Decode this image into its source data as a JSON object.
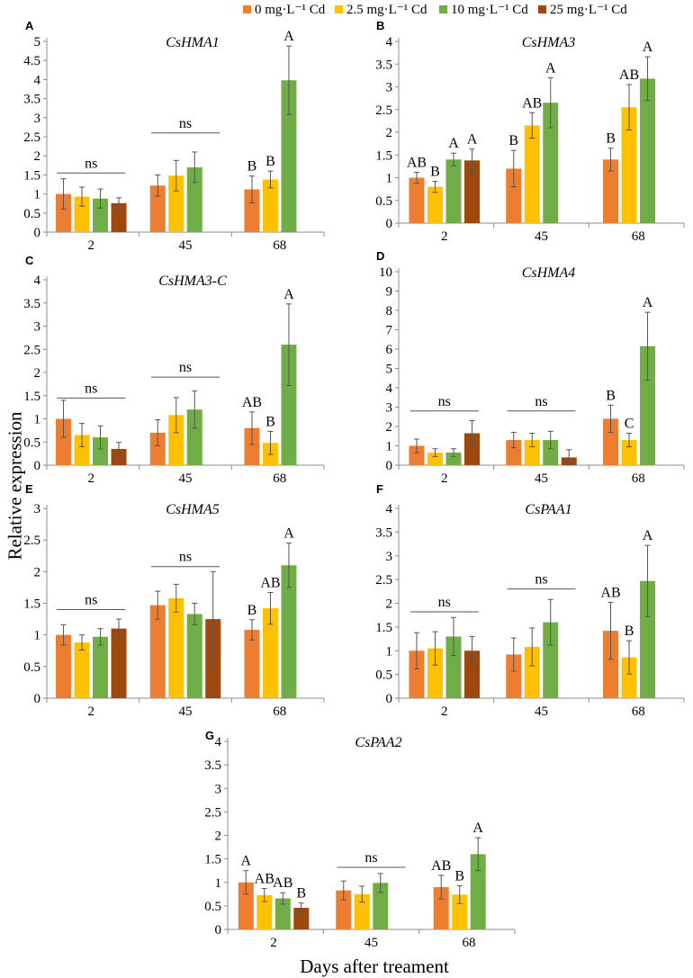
{
  "legend": {
    "items": [
      {
        "label": "0 mg·L⁻¹ Cd",
        "color": "#ED7D31"
      },
      {
        "label": "2.5 mg·L⁻¹ Cd",
        "color": "#FFC000"
      },
      {
        "label": "10 mg·L⁻¹ Cd",
        "color": "#70AD47"
      },
      {
        "label": "25 mg·L⁻¹ Cd",
        "color": "#9E480E"
      }
    ]
  },
  "axis_titles": {
    "y": "Relative expression",
    "x": "Days after treament"
  },
  "chart_data": [
    {
      "type": "bar",
      "panel": "A",
      "title": "CsHMA1",
      "categories": [
        "2",
        "45",
        "68"
      ],
      "ylim": [
        0,
        5
      ],
      "ystep": 0.5,
      "yticks": [
        "0",
        "0.5",
        "1",
        "1.5",
        "2",
        "2.5",
        "3",
        "3.5",
        "4",
        "4.5",
        "5"
      ],
      "series": [
        {
          "name": "0 mg·L⁻¹ Cd",
          "values": [
            1.0,
            1.22,
            1.12
          ],
          "errors": [
            0.4,
            0.28,
            0.35
          ],
          "labels": [
            "",
            "",
            "B"
          ]
        },
        {
          "name": "2.5 mg·L⁻¹ Cd",
          "values": [
            0.93,
            1.48,
            1.38
          ],
          "errors": [
            0.25,
            0.4,
            0.22
          ],
          "labels": [
            "",
            "",
            "B"
          ]
        },
        {
          "name": "10 mg·L⁻¹ Cd",
          "values": [
            0.88,
            1.7,
            3.98
          ],
          "errors": [
            0.25,
            0.4,
            0.9
          ],
          "labels": [
            "",
            "",
            "A"
          ]
        },
        {
          "name": "25 mg·L⁻¹ Cd",
          "values": [
            0.76,
            null,
            null
          ],
          "errors": [
            0.14,
            null,
            null
          ],
          "labels": [
            "",
            "",
            ""
          ]
        }
      ],
      "ns_groups": [
        {
          "category": "2",
          "label": "ns",
          "y": 1.55
        },
        {
          "category": "45",
          "label": "ns",
          "y": 2.6
        }
      ]
    },
    {
      "type": "bar",
      "panel": "B",
      "title": "CsHMA3",
      "categories": [
        "2",
        "45",
        "68"
      ],
      "ylim": [
        0,
        4
      ],
      "ystep": 0.5,
      "yticks": [
        "0",
        "0.5",
        "1",
        "1.5",
        "2",
        "2.5",
        "3",
        "3.5",
        "4"
      ],
      "series": [
        {
          "name": "0 mg·L⁻¹ Cd",
          "values": [
            1.0,
            1.2,
            1.4
          ],
          "errors": [
            0.12,
            0.4,
            0.25
          ],
          "labels": [
            "AB",
            "B",
            "B"
          ]
        },
        {
          "name": "2.5 mg·L⁻¹ Cd",
          "values": [
            0.8,
            2.15,
            2.55
          ],
          "errors": [
            0.12,
            0.28,
            0.5
          ],
          "labels": [
            "B",
            "AB",
            "AB"
          ]
        },
        {
          "name": "10 mg·L⁻¹ Cd",
          "values": [
            1.4,
            2.65,
            3.18
          ],
          "errors": [
            0.14,
            0.55,
            0.48
          ],
          "labels": [
            "A",
            "A",
            "A"
          ]
        },
        {
          "name": "25 mg·L⁻¹ Cd",
          "values": [
            1.38,
            null,
            null
          ],
          "errors": [
            0.25,
            null,
            null
          ],
          "labels": [
            "A",
            "",
            ""
          ]
        }
      ],
      "ns_groups": []
    },
    {
      "type": "bar",
      "panel": "C",
      "title": "CsHMA3-C",
      "categories": [
        "2",
        "45",
        "68"
      ],
      "ylim": [
        0,
        4
      ],
      "ystep": 0.5,
      "yticks": [
        "0",
        "0.5",
        "1",
        "1.5",
        "2",
        "2.5",
        "3",
        "3.5",
        "4"
      ],
      "series": [
        {
          "name": "0 mg·L⁻¹ Cd",
          "values": [
            1.0,
            0.7,
            0.8
          ],
          "errors": [
            0.4,
            0.28,
            0.35
          ],
          "labels": [
            "",
            "",
            "AB"
          ]
        },
        {
          "name": "2.5 mg·L⁻¹ Cd",
          "values": [
            0.65,
            1.08,
            0.48
          ],
          "errors": [
            0.25,
            0.38,
            0.25
          ],
          "labels": [
            "",
            "",
            "B"
          ]
        },
        {
          "name": "10 mg·L⁻¹ Cd",
          "values": [
            0.6,
            1.2,
            2.6
          ],
          "errors": [
            0.25,
            0.4,
            0.88
          ],
          "labels": [
            "",
            "",
            "A"
          ]
        },
        {
          "name": "25 mg·L⁻¹ Cd",
          "values": [
            0.35,
            null,
            null
          ],
          "errors": [
            0.14,
            null,
            null
          ],
          "labels": [
            "",
            "",
            ""
          ]
        }
      ],
      "ns_groups": [
        {
          "category": "2",
          "label": "ns",
          "y": 1.45
        },
        {
          "category": "45",
          "label": "ns",
          "y": 1.9
        }
      ]
    },
    {
      "type": "bar",
      "panel": "D",
      "title": "CsHMA4",
      "categories": [
        "2",
        "45",
        "68"
      ],
      "ylim": [
        0,
        10
      ],
      "ystep": 1,
      "yticks": [
        "0",
        "1",
        "2",
        "3",
        "4",
        "5",
        "6",
        "7",
        "8",
        "9",
        "10"
      ],
      "series": [
        {
          "name": "0 mg·L⁻¹ Cd",
          "values": [
            1.0,
            1.3,
            2.4
          ],
          "errors": [
            0.35,
            0.4,
            0.7
          ],
          "labels": [
            "",
            "",
            "B"
          ]
        },
        {
          "name": "2.5 mg·L⁻¹ Cd",
          "values": [
            0.65,
            1.3,
            1.3
          ],
          "errors": [
            0.2,
            0.35,
            0.35
          ],
          "labels": [
            "",
            "",
            "C"
          ]
        },
        {
          "name": "10 mg·L⁻¹ Cd",
          "values": [
            0.65,
            1.3,
            6.15
          ],
          "errors": [
            0.2,
            0.45,
            1.75
          ],
          "labels": [
            "",
            "",
            "A"
          ]
        },
        {
          "name": "25 mg·L⁻¹ Cd",
          "values": [
            1.65,
            0.4,
            null
          ],
          "errors": [
            0.65,
            0.4,
            null
          ],
          "labels": [
            "",
            "",
            ""
          ]
        }
      ],
      "ns_groups": [
        {
          "category": "2",
          "label": "ns",
          "y": 2.8
        },
        {
          "category": "45",
          "label": "ns",
          "y": 2.8
        }
      ]
    },
    {
      "type": "bar",
      "panel": "E",
      "title": "CsHMA5",
      "categories": [
        "2",
        "45",
        "68"
      ],
      "ylim": [
        0,
        3
      ],
      "ystep": 0.5,
      "yticks": [
        "0",
        "0.5",
        "1",
        "1.5",
        "2",
        "2.5",
        "3"
      ],
      "series": [
        {
          "name": "0 mg·L⁻¹ Cd",
          "values": [
            1.0,
            1.47,
            1.08
          ],
          "errors": [
            0.16,
            0.22,
            0.16
          ],
          "labels": [
            "",
            "",
            "B"
          ]
        },
        {
          "name": "2.5 mg·L⁻¹ Cd",
          "values": [
            0.88,
            1.58,
            1.42
          ],
          "errors": [
            0.12,
            0.22,
            0.25
          ],
          "labels": [
            "",
            "",
            "AB"
          ]
        },
        {
          "name": "10 mg·L⁻¹ Cd",
          "values": [
            0.97,
            1.33,
            2.1
          ],
          "errors": [
            0.13,
            0.17,
            0.35
          ],
          "labels": [
            "",
            "",
            "A"
          ]
        },
        {
          "name": "25 mg·L⁻¹ Cd",
          "values": [
            1.1,
            1.25,
            null
          ],
          "errors": [
            0.15,
            0.75,
            null
          ],
          "labels": [
            "",
            "",
            ""
          ]
        }
      ],
      "ns_groups": [
        {
          "category": "2",
          "label": "ns",
          "y": 1.4
        },
        {
          "category": "45",
          "label": "ns",
          "y": 2.08
        }
      ]
    },
    {
      "type": "bar",
      "panel": "F",
      "title": "CsPAA1",
      "categories": [
        "2",
        "45",
        "68"
      ],
      "ylim": [
        0,
        4
      ],
      "ystep": 0.5,
      "yticks": [
        "0",
        "0.5",
        "1",
        "1.5",
        "2",
        "2.5",
        "3",
        "3.5",
        "4"
      ],
      "series": [
        {
          "name": "0 mg·L⁻¹ Cd",
          "values": [
            1.0,
            0.92,
            1.42
          ],
          "errors": [
            0.38,
            0.35,
            0.6
          ],
          "labels": [
            "",
            "",
            "AB"
          ]
        },
        {
          "name": "2.5 mg·L⁻¹ Cd",
          "values": [
            1.05,
            1.08,
            0.86
          ],
          "errors": [
            0.35,
            0.4,
            0.35
          ],
          "labels": [
            "",
            "",
            "B"
          ]
        },
        {
          "name": "10 mg·L⁻¹ Cd",
          "values": [
            1.3,
            1.6,
            2.47
          ],
          "errors": [
            0.4,
            0.48,
            0.75
          ],
          "labels": [
            "",
            "",
            "A"
          ]
        },
        {
          "name": "25 mg·L⁻¹ Cd",
          "values": [
            1.0,
            null,
            null
          ],
          "errors": [
            0.3,
            null,
            null
          ],
          "labels": [
            "",
            "",
            ""
          ]
        }
      ],
      "ns_groups": [
        {
          "category": "2",
          "label": "ns",
          "y": 1.82
        },
        {
          "category": "45",
          "label": "ns",
          "y": 2.3
        }
      ]
    },
    {
      "type": "bar",
      "panel": "G",
      "title": "CsPAA2",
      "categories": [
        "2",
        "45",
        "68"
      ],
      "ylim": [
        0,
        4
      ],
      "ystep": 0.5,
      "yticks": [
        "0",
        "0.5",
        "1",
        "1.5",
        "2",
        "2.5",
        "3",
        "3.5",
        "4"
      ],
      "series": [
        {
          "name": "0 mg·L⁻¹ Cd",
          "values": [
            1.0,
            0.83,
            0.9
          ],
          "errors": [
            0.25,
            0.2,
            0.25
          ],
          "labels": [
            "A",
            "",
            "AB"
          ]
        },
        {
          "name": "2.5 mg·L⁻¹ Cd",
          "values": [
            0.73,
            0.75,
            0.74
          ],
          "errors": [
            0.14,
            0.17,
            0.19
          ],
          "labels": [
            "AB",
            "",
            "B"
          ]
        },
        {
          "name": "10 mg·L⁻¹ Cd",
          "values": [
            0.66,
            0.99,
            1.6
          ],
          "errors": [
            0.12,
            0.2,
            0.35
          ],
          "labels": [
            "AB",
            "",
            "A"
          ]
        },
        {
          "name": "25 mg·L⁻¹ Cd",
          "values": [
            0.46,
            null,
            null
          ],
          "errors": [
            0.1,
            null,
            null
          ],
          "labels": [
            "B",
            "",
            ""
          ]
        }
      ],
      "ns_groups": [
        {
          "category": "45",
          "label": "ns",
          "y": 1.32
        }
      ]
    }
  ]
}
